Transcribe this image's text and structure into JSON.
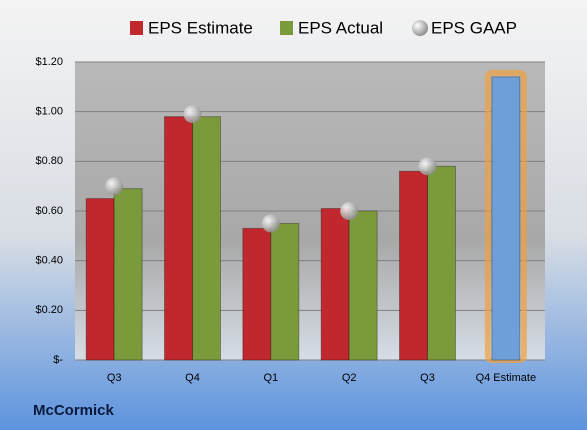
{
  "chart_data": {
    "type": "bar",
    "title": "McCormick",
    "categories": [
      "Q3",
      "Q4",
      "Q1",
      "Q2",
      "Q3",
      "Q4 Estimate"
    ],
    "series": [
      {
        "name": "EPS Estimate",
        "color": "#c0282d",
        "colors": [
          "#c0282d",
          "#c0282d",
          "#c0282d",
          "#c0282d",
          "#c0282d",
          "#6f9fd8"
        ],
        "values": [
          0.65,
          0.98,
          0.53,
          0.61,
          0.76,
          1.14
        ]
      },
      {
        "name": "EPS Actual",
        "color": "#7a9a3c",
        "values": [
          0.69,
          0.98,
          0.55,
          0.6,
          0.78,
          null
        ]
      },
      {
        "name": "EPS GAAP",
        "color": "#b8b8b8",
        "marker": "circle",
        "values": [
          0.7,
          0.99,
          0.55,
          0.6,
          0.78,
          null
        ]
      }
    ],
    "ylim": [
      0,
      1.2
    ],
    "yticks": [
      {
        "value": 0,
        "label": "$-"
      },
      {
        "value": 0.2,
        "label": "$0.20"
      },
      {
        "value": 0.4,
        "label": "$0.40"
      },
      {
        "value": 0.6,
        "label": "$0.60"
      },
      {
        "value": 0.8,
        "label": "$0.80"
      },
      {
        "value": 1.0,
        "label": "$1.00"
      },
      {
        "value": 1.2,
        "label": "$1.20"
      }
    ],
    "grid": true,
    "legend": "top"
  }
}
